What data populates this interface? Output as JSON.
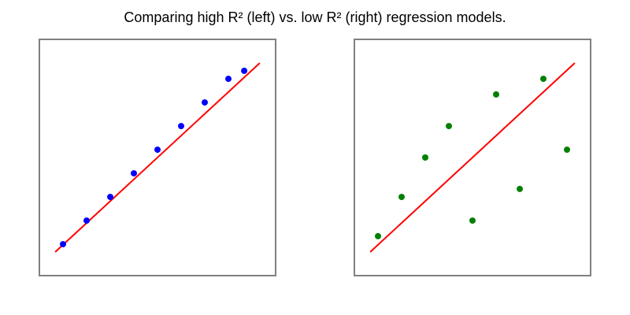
{
  "title": "Comparing high R² (left) vs. low R² (right) regression models.",
  "colors": {
    "frame": "#808080",
    "fit": "#ff0000"
  },
  "chart_data": [
    {
      "type": "scatter",
      "description_side": "left",
      "xlim": [
        0,
        10
      ],
      "ylim": [
        0,
        10
      ],
      "grid": false,
      "point_color": "#0000ff",
      "points": [
        {
          "x": 1,
          "y": 1.33
        },
        {
          "x": 2,
          "y": 2.33
        },
        {
          "x": 3,
          "y": 3.33
        },
        {
          "x": 4,
          "y": 4.33
        },
        {
          "x": 5,
          "y": 5.33
        },
        {
          "x": 6,
          "y": 6.33
        },
        {
          "x": 7,
          "y": 7.33
        },
        {
          "x": 8,
          "y": 8.33
        },
        {
          "x": 8.67,
          "y": 8.67
        }
      ],
      "fit_line": {
        "x": [
          0.67,
          9.33
        ],
        "y": [
          1.0,
          9.0
        ]
      }
    },
    {
      "type": "scatter",
      "description_side": "right",
      "xlim": [
        0,
        10
      ],
      "ylim": [
        0,
        10
      ],
      "grid": false,
      "point_color": "#008000",
      "points": [
        {
          "x": 1,
          "y": 1.67
        },
        {
          "x": 2,
          "y": 3.33
        },
        {
          "x": 3,
          "y": 5.0
        },
        {
          "x": 4,
          "y": 6.33
        },
        {
          "x": 5,
          "y": 2.33
        },
        {
          "x": 6,
          "y": 7.67
        },
        {
          "x": 7,
          "y": 3.67
        },
        {
          "x": 8,
          "y": 8.33
        },
        {
          "x": 9,
          "y": 5.33
        }
      ],
      "fit_line": {
        "x": [
          0.67,
          9.33
        ],
        "y": [
          1.0,
          9.0
        ]
      }
    }
  ]
}
